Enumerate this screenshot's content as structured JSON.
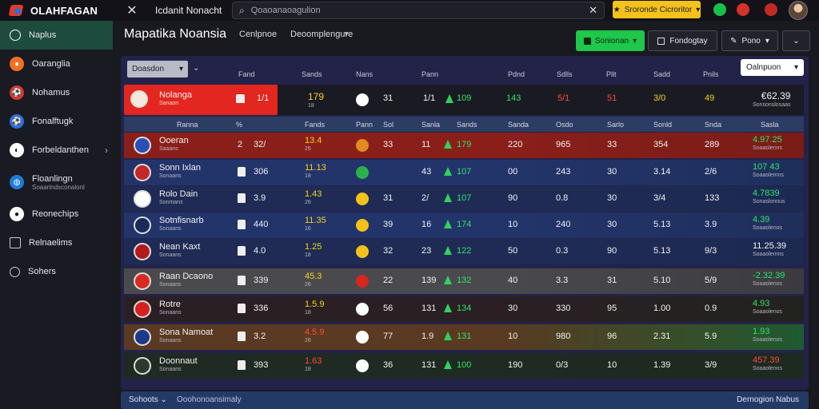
{
  "app": {
    "logo": "OLAHFAGAN",
    "tab_title": "Icdanit Nonacht",
    "search_placeholder": "Qoaoanaoagulion",
    "promo_label": "Sroronde Cicroritor"
  },
  "sidebar": {
    "items": [
      {
        "label": "Naplus",
        "sub": "",
        "icon": "search-icon",
        "active": true
      },
      {
        "label": "Oaranglia",
        "sub": "",
        "icon": "flame-icon"
      },
      {
        "label": "Nohamus",
        "sub": "",
        "icon": "ball-icon"
      },
      {
        "label": "Fonalftugk",
        "sub": "",
        "icon": "ball-icon-blue"
      },
      {
        "label": "Forbeldanthen",
        "sub": "",
        "icon": "circle-icon",
        "chevron": "›"
      },
      {
        "label": "Floanlingn",
        "sub": "Soaarindsconalonl",
        "icon": "globe-icon"
      },
      {
        "label": "Reonechips",
        "sub": "",
        "icon": "circle-icon"
      },
      {
        "label": "Relnaelims",
        "sub": "",
        "icon": "grid-icon"
      },
      {
        "label": "Sohers",
        "sub": "",
        "icon": "search-icon"
      }
    ]
  },
  "header": {
    "title": "Mapatika Noansia",
    "tabs": [
      "Cenlpnoe",
      "Deoomplengure"
    ],
    "green_button": "Sonionan",
    "dark_button_1": "Fondogtay",
    "dark_button_2": "Pono"
  },
  "board": {
    "filter_label": "Doasdon",
    "filter_mini": "⌄",
    "comp_select": "Oalnpuon",
    "top_headers": [
      "Fand",
      "Sands",
      "Nans",
      "Pann",
      "Pdnd",
      "Sdlls",
      "Pllt",
      "Sadd",
      "Pnils"
    ],
    "featured": {
      "name": "Nolanga",
      "sub": "Sanaon",
      "kit_value": "1/1",
      "c1": "179",
      "c1_sub": "18",
      "c2": "31",
      "c3": "1/1",
      "c4": "109",
      "c4_sub": "",
      "c5": "143",
      "c6": "5/1",
      "c7": "51",
      "c8": "3/0",
      "c9": "49",
      "c10": "€62.39",
      "c10_sub": "Sonsonslosaas"
    },
    "sub_headers": [
      "Ranna",
      "%",
      "Fands",
      "Pann",
      "Sol",
      "Sanla",
      "Sands",
      "Sanda",
      "Osdo",
      "Sarlo",
      "Sonld",
      "Snda",
      "Sasla"
    ],
    "rows": [
      {
        "name": "Ooeran",
        "sub": "Saaans",
        "a": "2",
        "b": "32/",
        "c": "13.4",
        "c_sub": "26",
        "d": "33",
        "e": "11",
        "f": "179",
        "g": "220",
        "h": "965",
        "i": "33",
        "j": "354",
        "k": "289",
        "l": "4.97.25",
        "l_sub": "Soaaolenns"
      },
      {
        "name": "Sonn Ixlan",
        "sub": "Sonaans",
        "a": "",
        "b": "306",
        "c": "11.13",
        "c_sub": "18",
        "d": "",
        "e": "43",
        "f": "107",
        "g": "00",
        "h": "243",
        "i": "30",
        "j": "3.14",
        "k": "2/6",
        "l": "107 43",
        "l_sub": "Soaaolemns"
      },
      {
        "name": "Rolo Dain",
        "sub": "Sonmans",
        "a": "",
        "b": "3.9",
        "c": "1.43",
        "c_sub": "26",
        "d": "31",
        "e": "2/",
        "f": "107",
        "g": "90",
        "h": "0.8",
        "i": "30",
        "j": "3/4",
        "k": "133",
        "l": "4.7839",
        "l_sub": "Sonaslonous"
      },
      {
        "name": "Sotnfisnarb",
        "sub": "Sonaans",
        "a": "",
        "b": "440",
        "c": "11.35",
        "c_sub": "16",
        "d": "39",
        "e": "16",
        "f": "174",
        "g": "10",
        "h": "240",
        "i": "30",
        "j": "5.13",
        "k": "3.9",
        "l": "4.39",
        "l_sub": "Soaaolenos"
      },
      {
        "name": "Nean Kaxt",
        "sub": "Sonaans",
        "a": "",
        "b": "4.0",
        "c": "1.25",
        "c_sub": "18",
        "d": "32",
        "e": "23",
        "f": "122",
        "g": "50",
        "h": "0.3",
        "i": "90",
        "j": "5.13",
        "k": "9/3",
        "l": "11.25.39",
        "l_sub": "Soaaolemns"
      },
      {
        "name": "Raan Dcaono",
        "sub": "Sonaans",
        "a": "",
        "b": "339",
        "c": "45.3",
        "c_sub": "26",
        "d": "22",
        "e": "139",
        "f": "132",
        "g": "40",
        "h": "3.3",
        "i": "31",
        "j": "5.10",
        "k": "5/9",
        "l": "-2.32.39",
        "l_sub": "Soaaolenos"
      },
      {
        "name": "Rotre",
        "sub": "Sonaans",
        "a": "",
        "b": "336",
        "c": "1.5.9",
        "c_sub": "18",
        "d": "56",
        "e": "131",
        "f": "134",
        "g": "30",
        "h": "330",
        "i": "95",
        "j": "1.00",
        "k": "0.9",
        "l": "4.93",
        "l_sub": "Soaaolenos"
      },
      {
        "name": "Sona Namoat",
        "sub": "Sonaans",
        "a": "",
        "b": "3.2",
        "c": "4.5.9",
        "c_sub": "26",
        "d": "77",
        "e": "1.9",
        "f": "131",
        "g": "10",
        "h": "980",
        "i": "96",
        "j": "2.31",
        "k": "5.9",
        "l": "1.93",
        "l_sub": "Soaaolenos"
      },
      {
        "name": "Doonnaut",
        "sub": "Sonaans",
        "a": "",
        "b": "393",
        "c": "1.63",
        "c_sub": "18",
        "d": "36",
        "e": "131",
        "f": "100",
        "g": "190",
        "h": "0/3",
        "i": "10",
        "j": "1.39",
        "k": "3/9",
        "l": "457.39",
        "l_sub": "Soaaolenns"
      }
    ]
  },
  "footer": {
    "left": "Sohoots",
    "middle": "Ooohonoansimaly",
    "right": "Dernogion Nabus"
  },
  "colors": {
    "accent_green": "#1fc74a",
    "accent_yellow": "#f4c21b",
    "accent_red": "#e3261f",
    "panel_blue": "#23234a"
  }
}
